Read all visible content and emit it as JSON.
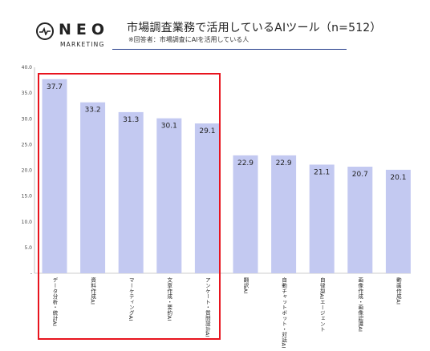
{
  "logo": {
    "word": "NEO",
    "sub": "MARKETING"
  },
  "header": {
    "title": "市場調査業務で活用しているAIツール（n=512）",
    "subtitle": "※回答者：市場調査にAIを活用している人"
  },
  "colors": {
    "bar": "#c3c9f1",
    "highlight": "#e8141e",
    "rule": "#223a8a"
  },
  "chart_data": {
    "type": "bar",
    "title": "市場調査業務で活用しているAIツール（n=512）",
    "categories": [
      "データ分析・統計AI",
      "資料作成AI",
      "マーケティングAI",
      "文章作成・要約AI",
      "アンケート・質問設計AI",
      "翻訳AI",
      "自動チャットボット・対話AI",
      "自律型AIエージェント",
      "画像作成・画像認識AI",
      "動画作成AI"
    ],
    "values": [
      37.7,
      33.2,
      31.3,
      30.1,
      29.1,
      22.9,
      22.9,
      21.1,
      20.7,
      20.1
    ],
    "value_labels": [
      "37.7",
      "33.2",
      "31.3",
      "30.1",
      "29.1",
      "22.9",
      "22.9",
      "21.1",
      "20.7",
      "20.1"
    ],
    "yticks": [
      "40.0",
      "35.0",
      "30.0",
      "25.0",
      "20.0",
      "15.0",
      "10.0",
      "5.0",
      "-"
    ],
    "ylim": [
      0,
      40
    ],
    "grid": false,
    "highlighted_categories": [
      0,
      1,
      2,
      3,
      4
    ]
  }
}
